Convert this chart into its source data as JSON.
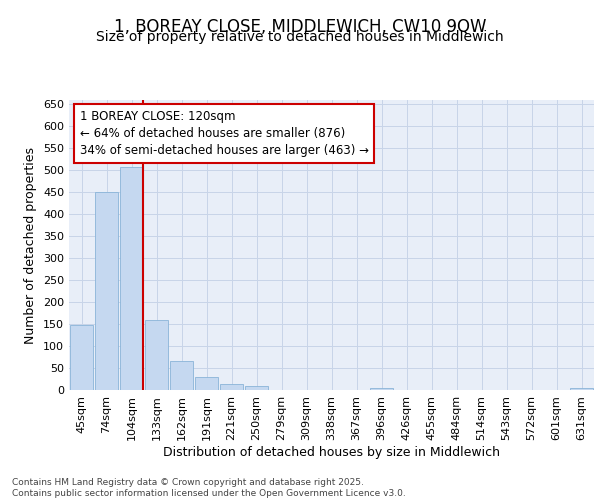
{
  "title_line1": "1, BOREAY CLOSE, MIDDLEWICH, CW10 9QW",
  "title_line2": "Size of property relative to detached houses in Middlewich",
  "xlabel": "Distribution of detached houses by size in Middlewich",
  "ylabel": "Number of detached properties",
  "categories": [
    "45sqm",
    "74sqm",
    "104sqm",
    "133sqm",
    "162sqm",
    "191sqm",
    "221sqm",
    "250sqm",
    "279sqm",
    "309sqm",
    "338sqm",
    "367sqm",
    "396sqm",
    "426sqm",
    "455sqm",
    "484sqm",
    "514sqm",
    "543sqm",
    "572sqm",
    "601sqm",
    "631sqm"
  ],
  "values": [
    148,
    450,
    507,
    160,
    67,
    29,
    13,
    8,
    0,
    0,
    0,
    0,
    4,
    0,
    0,
    0,
    0,
    0,
    0,
    0,
    5
  ],
  "bar_color": "#c5d8f0",
  "bar_edge_color": "#8ab4d8",
  "red_line_bar_index": 2,
  "annotation_line1": "1 BOREAY CLOSE: 120sqm",
  "annotation_line2": "← 64% of detached houses are smaller (876)",
  "annotation_line3": "34% of semi-detached houses are larger (463) →",
  "annotation_box_color": "#ffffff",
  "annotation_box_edge_color": "#cc0000",
  "ylim": [
    0,
    660
  ],
  "yticks": [
    0,
    50,
    100,
    150,
    200,
    250,
    300,
    350,
    400,
    450,
    500,
    550,
    600,
    650
  ],
  "grid_color": "#c8d4e8",
  "bg_color": "#e8eef8",
  "footer_text": "Contains HM Land Registry data © Crown copyright and database right 2025.\nContains public sector information licensed under the Open Government Licence v3.0.",
  "title_fontsize": 12,
  "subtitle_fontsize": 10,
  "axis_label_fontsize": 9,
  "tick_fontsize": 8,
  "annotation_fontsize": 8.5
}
